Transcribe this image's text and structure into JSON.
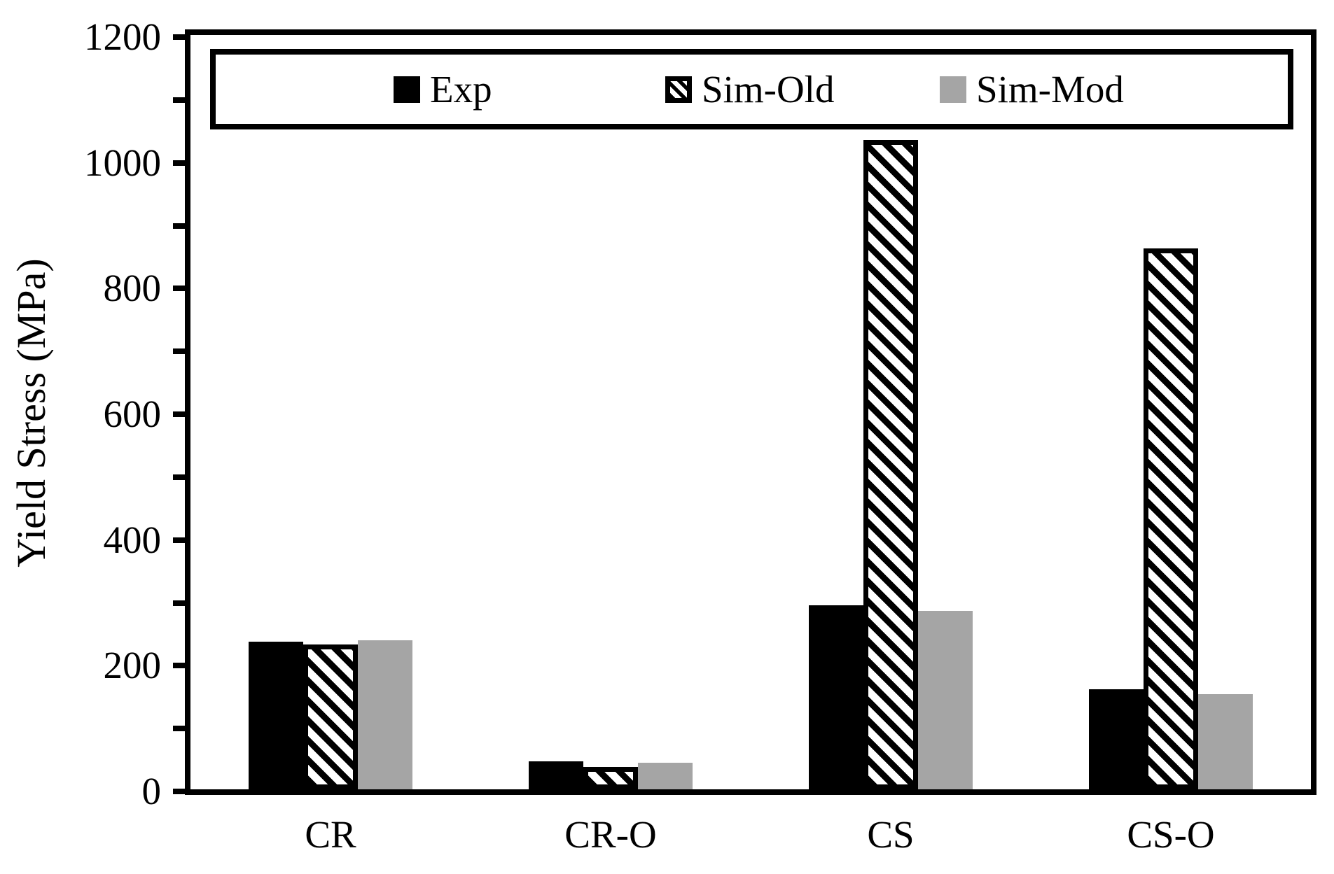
{
  "chart_data": {
    "type": "bar",
    "title": "",
    "xlabel": "",
    "ylabel": "Yield Stress (MPa)",
    "ylim": [
      0,
      1200
    ],
    "ytick_label_step": 200,
    "ytick_minor_step": 100,
    "ytick_labels": [
      "0",
      "200",
      "400",
      "600",
      "800",
      "1000",
      "1200"
    ],
    "categories": [
      "CR",
      "CR-O",
      "CS",
      "CS-O"
    ],
    "series": [
      {
        "name": "Exp",
        "pattern": "solid",
        "color": "#000000",
        "values": [
          235,
          44,
          293,
          159
        ]
      },
      {
        "name": "Sim-Old",
        "pattern": "diagonal-hatch",
        "color": "#000000",
        "values": [
          230,
          36,
          1033,
          860
        ]
      },
      {
        "name": "Sim-Mod",
        "pattern": "solid",
        "color": "#a5a5a5",
        "values": [
          237,
          42,
          284,
          151
        ]
      }
    ],
    "legend": {
      "position": "top-inside-box",
      "items": [
        "Exp",
        "Sim-Old",
        "Sim-Mod"
      ]
    },
    "grid": false,
    "background": "#ffffff",
    "frame_color": "#000000"
  }
}
